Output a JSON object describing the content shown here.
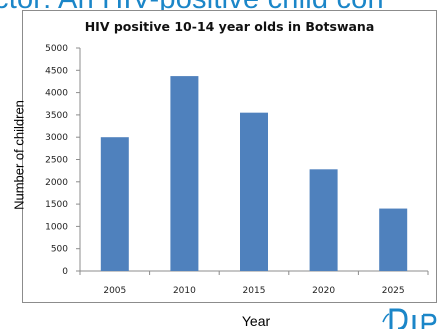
{
  "background_heading": "ctor: An HIV-positive child con",
  "chart_data": {
    "type": "bar",
    "title": "HIV positive 10-14 year olds in Botswana",
    "xlabel": "Year",
    "ylabel": "Number of children",
    "categories": [
      "2005",
      "2010",
      "2015",
      "2020",
      "2025"
    ],
    "values": [
      3000,
      4370,
      3550,
      2280,
      1400
    ],
    "ylim": [
      0,
      5000
    ],
    "yticks": [
      "0",
      "500",
      "1000",
      "1500",
      "2000",
      "2500",
      "3000",
      "3500",
      "4000",
      "4500",
      "5000"
    ],
    "bar_color": "#4f81bd",
    "grid": false,
    "legend": "none"
  },
  "colors": {
    "heading": "#1b86c8",
    "logo": "#1b86c8"
  }
}
